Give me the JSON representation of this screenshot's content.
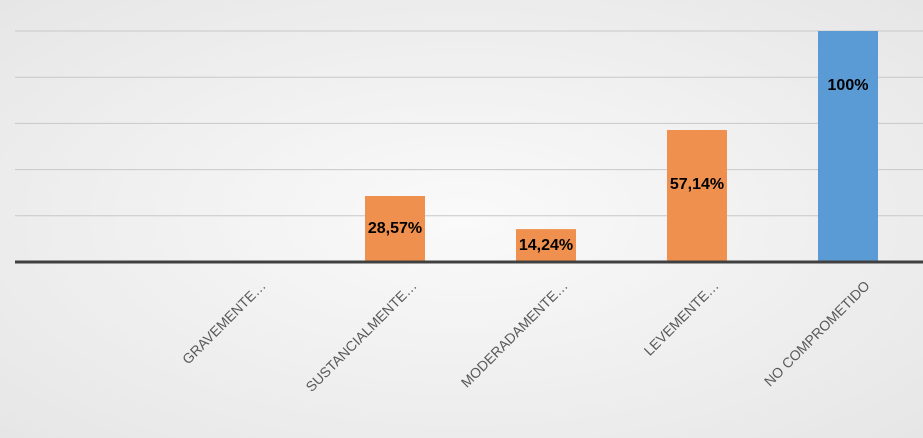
{
  "chart_data": {
    "type": "bar",
    "categories": [
      "GRAVEMENTE…",
      "SUSTANCIALMENTE…",
      "MODERADAMENTE…",
      "LEVEMENTE…",
      "NO COMPROMETIDO"
    ],
    "values": [
      0,
      28.57,
      14.24,
      57.14,
      100
    ],
    "value_labels": [
      null,
      "28,57%",
      "14,24%",
      "57,14%",
      "100%"
    ],
    "colors": [
      "#f0904e",
      "#f0904e",
      "#f0904e",
      "#f0904e",
      "#5b9bd5"
    ],
    "ylim": [
      0,
      100
    ],
    "yticks": [
      0,
      20,
      40,
      60,
      80,
      100
    ],
    "grid": true
  }
}
